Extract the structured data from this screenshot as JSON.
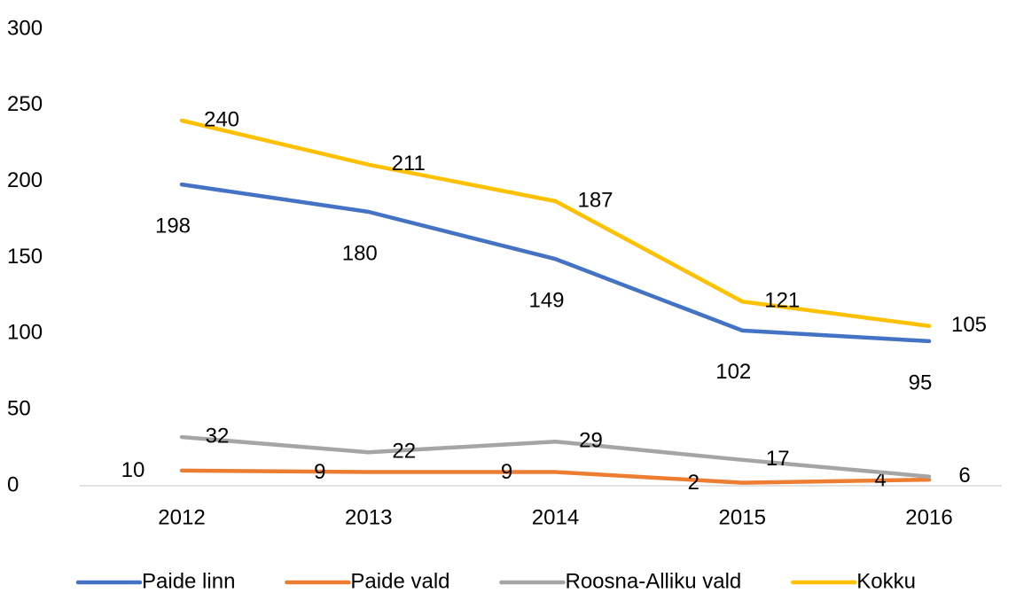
{
  "chart_data": {
    "type": "line",
    "categories": [
      "2012",
      "2013",
      "2014",
      "2015",
      "2016"
    ],
    "series": [
      {
        "name": "Paide linn",
        "color": "#4472c4",
        "values": [
          198,
          180,
          149,
          102,
          95
        ]
      },
      {
        "name": "Paide vald",
        "color": "#ed7d31",
        "values": [
          10,
          9,
          9,
          2,
          4
        ]
      },
      {
        "name": "Roosna-Alliku vald",
        "color": "#a5a5a5",
        "values": [
          32,
          22,
          29,
          17,
          6
        ]
      },
      {
        "name": "Kokku",
        "color": "#ffc000",
        "values": [
          240,
          211,
          187,
          121,
          105
        ]
      }
    ],
    "ylim": [
      0,
      300
    ],
    "yticks": [
      0,
      50,
      100,
      150,
      200,
      250,
      300
    ],
    "grid": false,
    "legend": "bottom"
  }
}
